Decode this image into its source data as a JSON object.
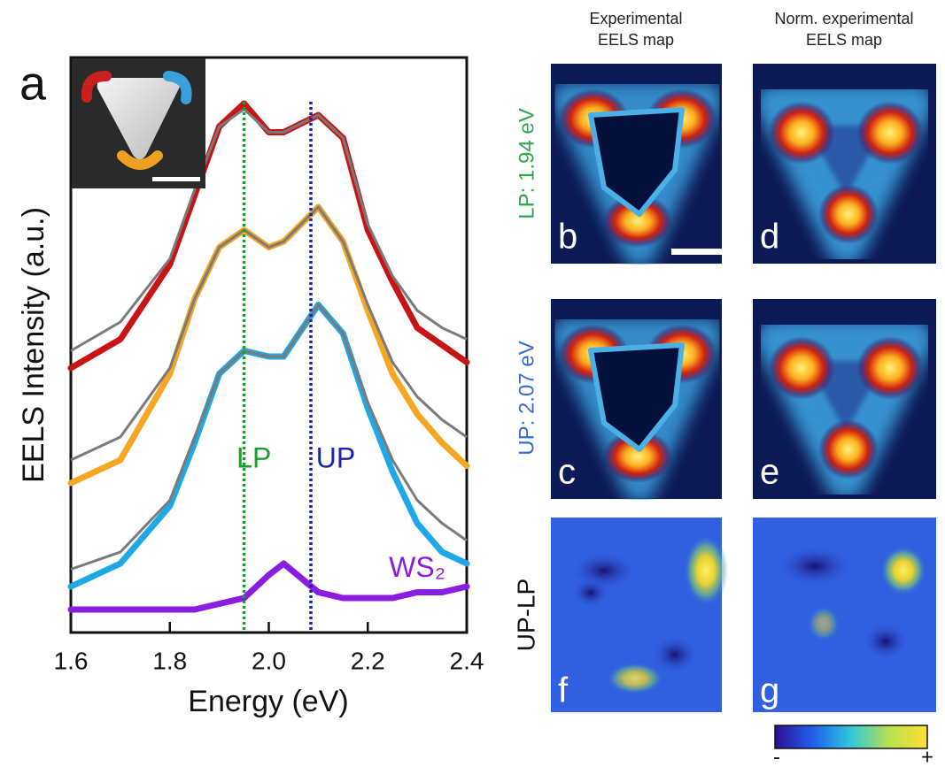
{
  "chart_data": {
    "type": "line",
    "panel_label": "a",
    "xlabel": "Energy (eV)",
    "ylabel": "EELS Intensity (a.u.)",
    "x": [
      1.6,
      1.7,
      1.8,
      1.85,
      1.9,
      1.95,
      2.0,
      2.03,
      2.1,
      2.15,
      2.2,
      2.25,
      2.3,
      2.35,
      2.4
    ],
    "series": [
      {
        "color": "#c81414",
        "values": [
          46,
          51,
          64,
          76,
          88,
          92,
          87,
          87,
          90,
          86,
          70,
          61,
          53,
          50,
          47
        ]
      },
      {
        "color": "#f5a623",
        "values": [
          26,
          30,
          45,
          58,
          67,
          70,
          67,
          68,
          74,
          68,
          56,
          45,
          38,
          33,
          29
        ]
      },
      {
        "color": "#1fa8e8",
        "values": [
          8,
          12,
          22,
          33,
          45,
          49,
          48,
          48,
          57,
          52,
          39,
          28,
          19,
          14,
          12
        ]
      },
      {
        "color": "#8a1ee0",
        "values": [
          4,
          4,
          4,
          4,
          5,
          6,
          10,
          12,
          7,
          6,
          6,
          6,
          7,
          7,
          8
        ]
      }
    ],
    "fits": [
      {
        "color": "#7a7a7a",
        "values": [
          49,
          54,
          65,
          77,
          88,
          91,
          87,
          87,
          90,
          86,
          71,
          62,
          56,
          53,
          51
        ]
      },
      {
        "color": "#7a7a7a",
        "values": [
          30,
          34,
          46,
          58,
          67,
          70,
          67,
          68,
          74,
          68,
          57,
          47,
          41,
          37,
          34
        ]
      },
      {
        "color": "#7a7a7a",
        "values": [
          11,
          14,
          23,
          34,
          45,
          49,
          48,
          48,
          57,
          52,
          40,
          30,
          23,
          19,
          16
        ]
      }
    ],
    "vlines": [
      {
        "x": 1.95,
        "color": "#1e9e2e"
      },
      {
        "x": 2.085,
        "color": "#1a22b0"
      }
    ],
    "annotations": [
      {
        "text": "LP",
        "x": 1.97,
        "y": 30,
        "color": "#1e9e2e"
      },
      {
        "text": "UP",
        "x": 2.135,
        "y": 30,
        "color": "#1a22b0"
      },
      {
        "text": "WS₂",
        "x": 2.3,
        "y": 11,
        "color": "#8a1ee0"
      }
    ],
    "xlim": [
      1.6,
      2.4
    ],
    "ylim": [
      0,
      100
    ],
    "xticks": [
      1.6,
      1.8,
      {
        "value": 2,
        "label": "2.0"
      },
      2.2,
      2.4
    ]
  },
  "maps": {
    "columns": [
      "Experimental\nEELS map",
      "Norm. experimental\nEELS map"
    ],
    "rows": [
      {
        "label": "LP: 1.94 eV",
        "color": "#2aa84a"
      },
      {
        "label": "UP: 2.07 eV",
        "color": "#3a6ad0"
      },
      {
        "label": "UP-LP",
        "color": "#111111"
      }
    ],
    "panels": [
      "b",
      "d",
      "c",
      "e",
      "f",
      "g"
    ],
    "colorbar": [
      "-",
      "+"
    ]
  }
}
